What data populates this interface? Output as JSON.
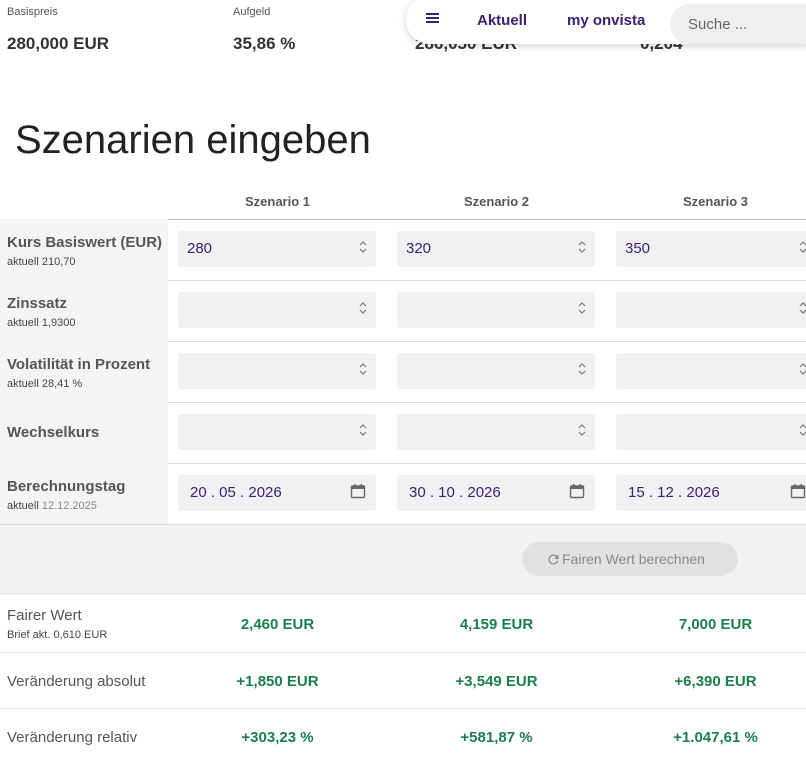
{
  "summary": [
    {
      "label": "Basispreis",
      "value": "280,000 EUR"
    },
    {
      "label": "Aufgeld",
      "value": "35,86 %"
    },
    {
      "value": "286,050 EUR"
    },
    {
      "value": "0,204"
    }
  ],
  "nav": {
    "items": [
      "Aktuell",
      "my onvista"
    ],
    "search_placeholder": "Suche ..."
  },
  "heading": "Szenarien eingeben",
  "scenarios": [
    "Szenario 1",
    "Szenario 2",
    "Szenario 3"
  ],
  "inputs": [
    {
      "label": "Kurs Basiswert (EUR)",
      "sub": "aktuell 210,70",
      "values": [
        "280",
        "320",
        "350"
      ]
    },
    {
      "label": "Zinssatz",
      "sub": "aktuell 1,9300"
    },
    {
      "label": "Volatilität in Prozent",
      "sub": "aktuell 28,41 %"
    },
    {
      "label": "Wechselkurs"
    },
    {
      "label": "Berechnungstag",
      "sub": "aktuell",
      "sub_date": "12.12.2025",
      "dates": [
        "20 . 05 . 2026",
        "30 . 10 . 2026",
        "15 . 12 . 2026"
      ]
    }
  ],
  "button": "Fairen Wert berechnen",
  "results": [
    {
      "label": "Fairer Wert",
      "sub": "Brief akt. 0,610 EUR",
      "values": [
        "2,460 EUR",
        "4,159 EUR",
        "7,000 EUR"
      ]
    },
    {
      "label": "Veränderung absolut",
      "values": [
        "+1,850 EUR",
        "+3,549 EUR",
        "+6,390 EUR"
      ]
    },
    {
      "label": "Veränderung relativ",
      "values": [
        "+303,23 %",
        "+581,87 %",
        "+1.047,61 %"
      ]
    }
  ]
}
